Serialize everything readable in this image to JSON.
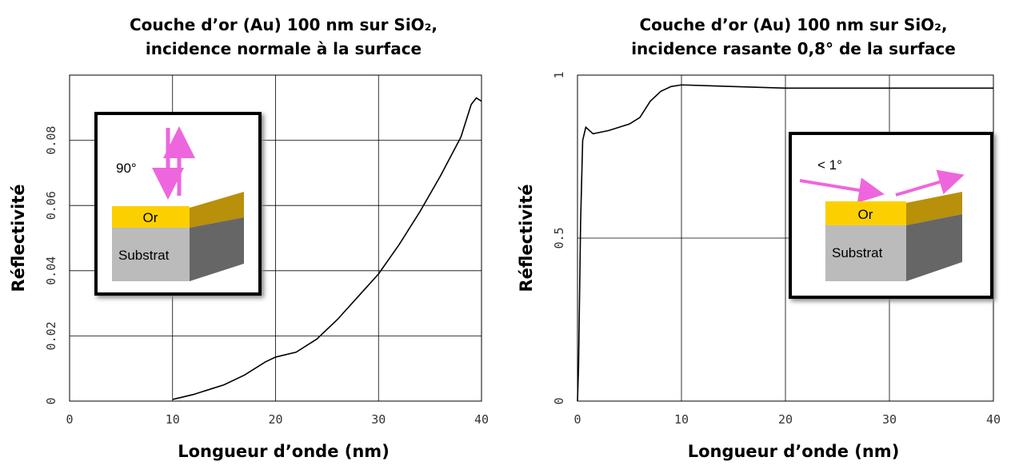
{
  "chart_data": [
    {
      "type": "line",
      "title": "Couche d’or (Au) 100 nm sur SiO₂,",
      "subtitle": "incidence normale à la surface",
      "x_label": "Longueur d’onde (nm)",
      "y_label": "Réflectivité",
      "x": [
        10,
        12,
        14,
        15,
        17,
        19,
        20,
        22,
        24,
        26,
        28,
        30,
        32,
        34,
        36,
        38,
        39,
        39.5,
        40
      ],
      "values": [
        0.0005,
        0.002,
        0.004,
        0.005,
        0.008,
        0.012,
        0.0135,
        0.015,
        0.019,
        0.025,
        0.032,
        0.039,
        0.048,
        0.058,
        0.069,
        0.081,
        0.091,
        0.093,
        0.092
      ],
      "color": "#000000",
      "xlim": [
        0,
        40
      ],
      "xticks": [
        0,
        10,
        20,
        30,
        40
      ],
      "ylim": [
        0,
        0.1
      ],
      "yticks": [
        0,
        0.02,
        0.04,
        0.06,
        0.08
      ],
      "grid": true,
      "annotations": [
        "90°",
        "Or",
        "Substrat"
      ]
    },
    {
      "type": "line",
      "title": "Couche d’or (Au) 100 nm sur SiO₂,",
      "subtitle": "incidence rasante 0,8° de la surface",
      "x_label": "Longueur d’onde (nm)",
      "y_label": "Réflectivité",
      "x": [
        0,
        0.1,
        0.3,
        0.5,
        0.8,
        1.5,
        3,
        5,
        6,
        7,
        8,
        9,
        10,
        15,
        20,
        30,
        40
      ],
      "values": [
        0,
        0.1,
        0.55,
        0.8,
        0.84,
        0.82,
        0.83,
        0.85,
        0.87,
        0.92,
        0.95,
        0.965,
        0.97,
        0.965,
        0.96,
        0.96,
        0.96
      ],
      "color": "#000000",
      "xlim": [
        0,
        40
      ],
      "xticks": [
        0,
        10,
        20,
        30,
        40
      ],
      "ylim": [
        0,
        1
      ],
      "yticks": [
        0,
        0.5,
        1
      ],
      "grid": true,
      "annotations": [
        "< 1°",
        "Or",
        "Substrat"
      ]
    }
  ]
}
